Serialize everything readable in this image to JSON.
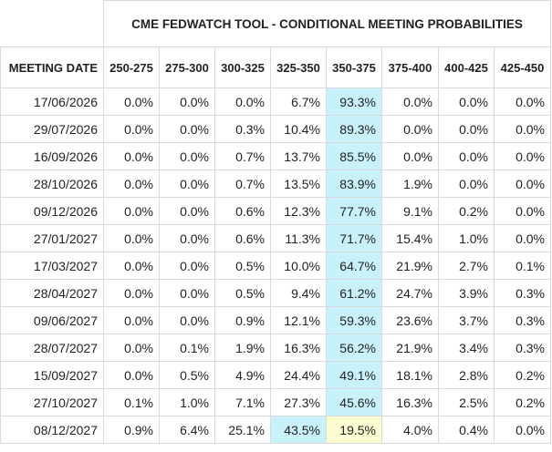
{
  "title": "CME FEDWATCH TOOL - CONDITIONAL MEETING PROBABILITIES",
  "date_header": "MEETING DATE",
  "ranges": [
    "250-275",
    "275-300",
    "300-325",
    "325-350",
    "350-375",
    "375-400",
    "400-425",
    "425-450"
  ],
  "rows": [
    {
      "date": "17/06/2026",
      "values": [
        "0.0%",
        "0.0%",
        "0.0%",
        "6.7%",
        "93.3%",
        "0.0%",
        "0.0%",
        "0.0%"
      ],
      "highlight": [
        4
      ]
    },
    {
      "date": "29/07/2026",
      "values": [
        "0.0%",
        "0.0%",
        "0.3%",
        "10.4%",
        "89.3%",
        "0.0%",
        "0.0%",
        "0.0%"
      ],
      "highlight": [
        4
      ]
    },
    {
      "date": "16/09/2026",
      "values": [
        "0.0%",
        "0.0%",
        "0.7%",
        "13.7%",
        "85.5%",
        "0.0%",
        "0.0%",
        "0.0%"
      ],
      "highlight": [
        4
      ]
    },
    {
      "date": "28/10/2026",
      "values": [
        "0.0%",
        "0.0%",
        "0.7%",
        "13.5%",
        "83.9%",
        "1.9%",
        "0.0%",
        "0.0%"
      ],
      "highlight": [
        4
      ]
    },
    {
      "date": "09/12/2026",
      "values": [
        "0.0%",
        "0.0%",
        "0.6%",
        "12.3%",
        "77.7%",
        "9.1%",
        "0.2%",
        "0.0%"
      ],
      "highlight": [
        4
      ]
    },
    {
      "date": "27/01/2027",
      "values": [
        "0.0%",
        "0.0%",
        "0.6%",
        "11.3%",
        "71.7%",
        "15.4%",
        "1.0%",
        "0.0%"
      ],
      "highlight": [
        4
      ]
    },
    {
      "date": "17/03/2027",
      "values": [
        "0.0%",
        "0.0%",
        "0.5%",
        "10.0%",
        "64.7%",
        "21.9%",
        "2.7%",
        "0.1%"
      ],
      "highlight": [
        4
      ]
    },
    {
      "date": "28/04/2027",
      "values": [
        "0.0%",
        "0.0%",
        "0.5%",
        "9.4%",
        "61.2%",
        "24.7%",
        "3.9%",
        "0.3%"
      ],
      "highlight": [
        4
      ]
    },
    {
      "date": "09/06/2027",
      "values": [
        "0.0%",
        "0.0%",
        "0.9%",
        "12.1%",
        "59.3%",
        "23.6%",
        "3.7%",
        "0.3%"
      ],
      "highlight": [
        4
      ]
    },
    {
      "date": "28/07/2027",
      "values": [
        "0.0%",
        "0.1%",
        "1.9%",
        "16.3%",
        "56.2%",
        "21.9%",
        "3.4%",
        "0.3%"
      ],
      "highlight": [
        4
      ]
    },
    {
      "date": "15/09/2027",
      "values": [
        "0.0%",
        "0.5%",
        "4.9%",
        "24.4%",
        "49.1%",
        "18.1%",
        "2.8%",
        "0.2%"
      ],
      "highlight": [
        4
      ]
    },
    {
      "date": "27/10/2027",
      "values": [
        "0.1%",
        "1.0%",
        "7.1%",
        "27.3%",
        "45.6%",
        "16.3%",
        "2.5%",
        "0.2%"
      ],
      "highlight": [
        4
      ]
    },
    {
      "date": "08/12/2027",
      "values": [
        "0.9%",
        "6.4%",
        "25.1%",
        "43.5%",
        "19.5%",
        "4.0%",
        "0.4%",
        "0.0%"
      ],
      "highlight": [
        3
      ],
      "yellow": [
        4
      ]
    }
  ],
  "colors": {
    "highlight_blue": "#c8f1f9",
    "highlight_yellow": "#fdfbd0",
    "border": "#d9d9d9"
  }
}
